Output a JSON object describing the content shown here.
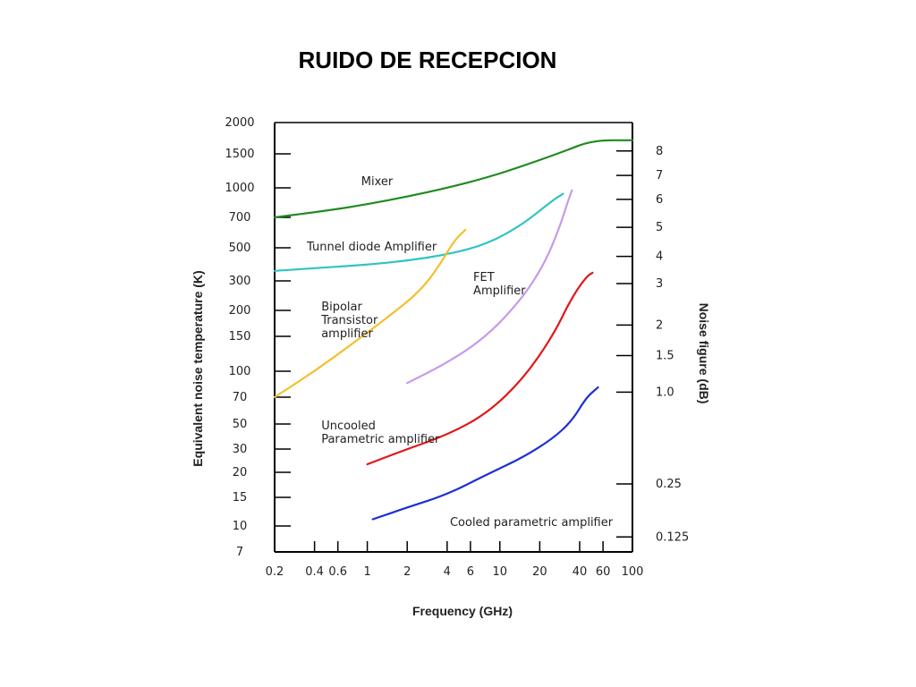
{
  "title": "RUIDO DE RECEPCION",
  "chart_data": {
    "type": "line",
    "x_scale": "log",
    "xlabel": "Frequency (GHz)",
    "ylabel": "Equivalent noise temperature (K)",
    "y2label": "Noise figure (dB)",
    "x_ticks": [
      "0.2",
      "0.4",
      "0.6",
      "1",
      "2",
      "4",
      "6",
      "10",
      "20",
      "40",
      "60",
      "100"
    ],
    "x_tick_values": [
      0.2,
      0.4,
      0.6,
      1,
      2,
      4,
      6,
      10,
      20,
      40,
      60,
      100
    ],
    "y_ticks": [
      "2000",
      "1500",
      "1000",
      "700",
      "500",
      "300",
      "200",
      "150",
      "100",
      "70",
      "50",
      "30",
      "20",
      "15",
      "10",
      "7"
    ],
    "y_tick_values": [
      2000,
      1500,
      1000,
      700,
      500,
      300,
      200,
      150,
      100,
      70,
      50,
      30,
      20,
      15,
      10,
      7
    ],
    "y2_ticks": [
      "8",
      "7",
      "6",
      "5",
      "4",
      "3",
      "2",
      "1.5",
      "1.0",
      "0.25",
      "0.125"
    ],
    "y2_tick_temperatures": [
      1540,
      1160,
      870,
      627,
      438,
      289,
      170,
      120,
      75,
      17.5,
      8.6
    ],
    "series": [
      {
        "name": "Mixer",
        "color": "#1f8a1f",
        "points": [
          [
            0.2,
            700
          ],
          [
            0.5,
            760
          ],
          [
            1,
            820
          ],
          [
            2,
            900
          ],
          [
            4,
            1000
          ],
          [
            8,
            1130
          ],
          [
            15,
            1300
          ],
          [
            30,
            1530
          ],
          [
            50,
            1700
          ],
          [
            100,
            1700
          ]
        ]
      },
      {
        "name": "Tunnel diode Amplifier",
        "color": "#2ec4c4",
        "points": [
          [
            0.2,
            350
          ],
          [
            0.5,
            370
          ],
          [
            1,
            385
          ],
          [
            2,
            410
          ],
          [
            4,
            450
          ],
          [
            8,
            520
          ],
          [
            15,
            650
          ],
          [
            25,
            860
          ],
          [
            30,
            930
          ]
        ]
      },
      {
        "name": "FET Amplifier",
        "color": "#c59be8",
        "points": [
          [
            2,
            85
          ],
          [
            4,
            110
          ],
          [
            8,
            150
          ],
          [
            15,
            240
          ],
          [
            22,
            400
          ],
          [
            28,
            620
          ],
          [
            33,
            870
          ],
          [
            35,
            970
          ]
        ]
      },
      {
        "name": "Bipolar Transistor amplifier",
        "color": "#f2c12e",
        "points": [
          [
            0.2,
            70
          ],
          [
            0.4,
            100
          ],
          [
            0.8,
            140
          ],
          [
            1.5,
            190
          ],
          [
            2.5,
            260
          ],
          [
            3.5,
            380
          ],
          [
            4.5,
            540
          ],
          [
            5.5,
            610
          ]
        ]
      },
      {
        "name": "Uncooled Parametric amplifier",
        "color": "#e01818",
        "points": [
          [
            1,
            23
          ],
          [
            2,
            30
          ],
          [
            4,
            40
          ],
          [
            8,
            57
          ],
          [
            15,
            90
          ],
          [
            25,
            150
          ],
          [
            35,
            240
          ],
          [
            45,
            320
          ],
          [
            50,
            340
          ]
        ]
      },
      {
        "name": "Cooled parametric amplifier",
        "color": "#1c2fd6",
        "points": [
          [
            1.1,
            11
          ],
          [
            2,
            13
          ],
          [
            4,
            15.5
          ],
          [
            8,
            19.5
          ],
          [
            15,
            26
          ],
          [
            25,
            37
          ],
          [
            35,
            52
          ],
          [
            45,
            70
          ],
          [
            55,
            80
          ]
        ]
      }
    ],
    "annotations": [
      {
        "lines": [
          "Mixer"
        ],
        "x": 0.9,
        "y": 1030
      },
      {
        "lines": [
          "Tunnel diode Amplifier"
        ],
        "x": 0.35,
        "y": 480
      },
      {
        "lines": [
          "FET",
          "Amplifier"
        ],
        "x": 6.3,
        "y": 300
      },
      {
        "lines": [
          "Bipolar",
          "Transistor",
          "amplifier"
        ],
        "x": 0.45,
        "y": 200
      },
      {
        "lines": [
          "Uncooled",
          "Parametric amplifier"
        ],
        "x": 0.45,
        "y": 45
      },
      {
        "lines": [
          "Cooled parametric amplifier"
        ],
        "x": 4.2,
        "y": 10
      }
    ]
  }
}
